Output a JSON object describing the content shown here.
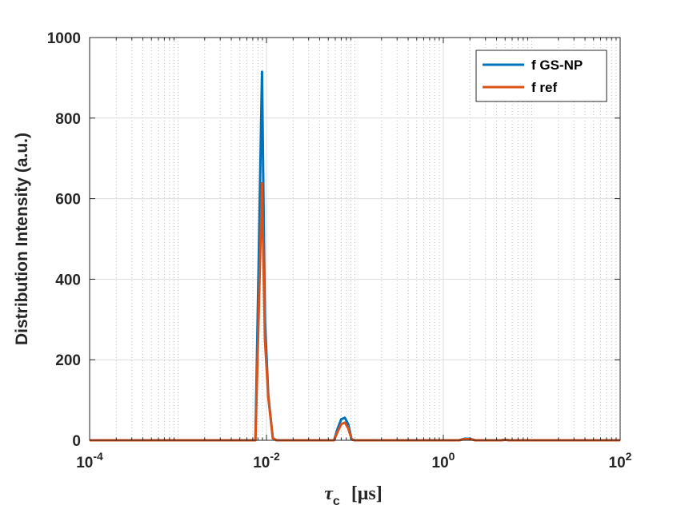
{
  "chart_data": {
    "type": "line",
    "xscale": "log",
    "xlim": [
      0.0001,
      100
    ],
    "ylim": [
      0,
      1000
    ],
    "xticks": [
      0.0001,
      0.01,
      1,
      100
    ],
    "xtick_labels": [
      {
        "base": "10",
        "exp": "-4"
      },
      {
        "base": "10",
        "exp": "-2"
      },
      {
        "base": "10",
        "exp": "0"
      },
      {
        "base": "10",
        "exp": "2"
      }
    ],
    "yticks": [
      0,
      200,
      400,
      600,
      800,
      1000
    ],
    "ytick_labels": [
      "0",
      "200",
      "400",
      "600",
      "800",
      "1000"
    ],
    "xlabel": {
      "symbol": "τ",
      "sub": "c",
      "unit": "[μs]"
    },
    "ylabel": "Distribution Intensity (a.u.)",
    "grid": true,
    "minor_grid": true,
    "legend_position": "top-right",
    "series": [
      {
        "name": "f GS-NP",
        "color": "#0072BD",
        "points": [
          [
            0.0001,
            0
          ],
          [
            0.0069,
            0
          ],
          [
            0.0075,
            0
          ],
          [
            0.0082,
            470
          ],
          [
            0.0089,
            915
          ],
          [
            0.0096,
            300
          ],
          [
            0.0105,
            110
          ],
          [
            0.0118,
            5
          ],
          [
            0.013,
            0
          ],
          [
            0.05,
            0
          ],
          [
            0.058,
            0
          ],
          [
            0.064,
            30
          ],
          [
            0.07,
            52
          ],
          [
            0.077,
            56
          ],
          [
            0.084,
            40
          ],
          [
            0.092,
            2
          ],
          [
            0.1,
            0
          ],
          [
            1.5,
            0
          ],
          [
            1.75,
            4
          ],
          [
            2.0,
            4
          ],
          [
            2.3,
            0
          ],
          [
            4.5,
            0
          ],
          [
            5.0,
            1.5
          ],
          [
            5.6,
            0
          ],
          [
            100,
            0
          ]
        ]
      },
      {
        "name": "f ref",
        "color": "#D95319",
        "points": [
          [
            0.0001,
            0
          ],
          [
            0.0069,
            0
          ],
          [
            0.0075,
            0
          ],
          [
            0.0082,
            330
          ],
          [
            0.0089,
            638
          ],
          [
            0.0096,
            250
          ],
          [
            0.0105,
            105
          ],
          [
            0.0118,
            5
          ],
          [
            0.013,
            0
          ],
          [
            0.05,
            0
          ],
          [
            0.058,
            0
          ],
          [
            0.064,
            22
          ],
          [
            0.07,
            40
          ],
          [
            0.077,
            44
          ],
          [
            0.084,
            30
          ],
          [
            0.092,
            2
          ],
          [
            0.1,
            0
          ],
          [
            1.5,
            0
          ],
          [
            1.75,
            3
          ],
          [
            2.0,
            3
          ],
          [
            2.3,
            0
          ],
          [
            4.5,
            0
          ],
          [
            5.0,
            1
          ],
          [
            5.6,
            0
          ],
          [
            100,
            0
          ]
        ]
      }
    ]
  }
}
